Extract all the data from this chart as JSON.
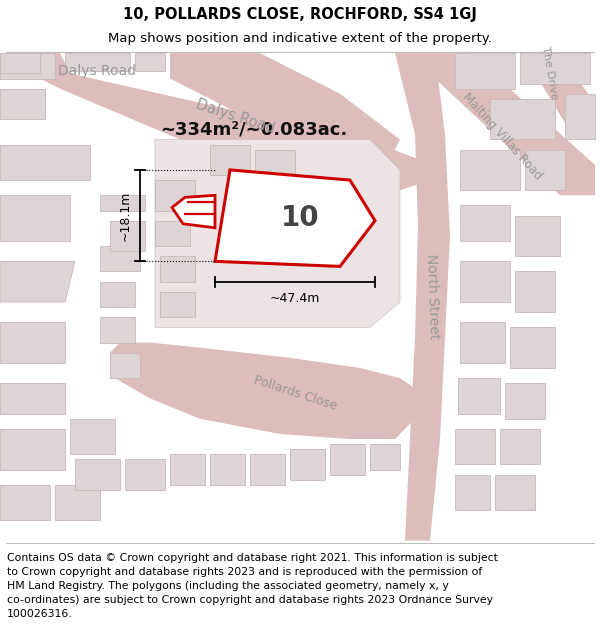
{
  "title_line1": "10, POLLARDS CLOSE, ROCHFORD, SS4 1GJ",
  "title_line2": "Map shows position and indicative extent of the property.",
  "footer_lines": [
    "Contains OS data © Crown copyright and database right 2021. This information is subject",
    "to Crown copyright and database rights 2023 and is reproduced with the permission of",
    "HM Land Registry. The polygons (including the associated geometry, namely x, y",
    "co-ordinates) are subject to Crown copyright and database rights 2023 Ordnance Survey",
    "100026316."
  ],
  "map_bg": "#f2eded",
  "road_color": "#ddbcbc",
  "road_edge": "#ddbcbc",
  "building_face": "#ddd5d5",
  "building_edge": "#c8b8b8",
  "highlight_color": "#cc0000",
  "road_label_color": "#999999",
  "dim_color": "#111111",
  "title_fontsize": 10.5,
  "subtitle_fontsize": 9.5,
  "footer_fontsize": 7.8,
  "property_number": "10",
  "area_text": "~334m²/~0.083ac.",
  "width_text": "~47.4m",
  "height_text": "~18.1m"
}
